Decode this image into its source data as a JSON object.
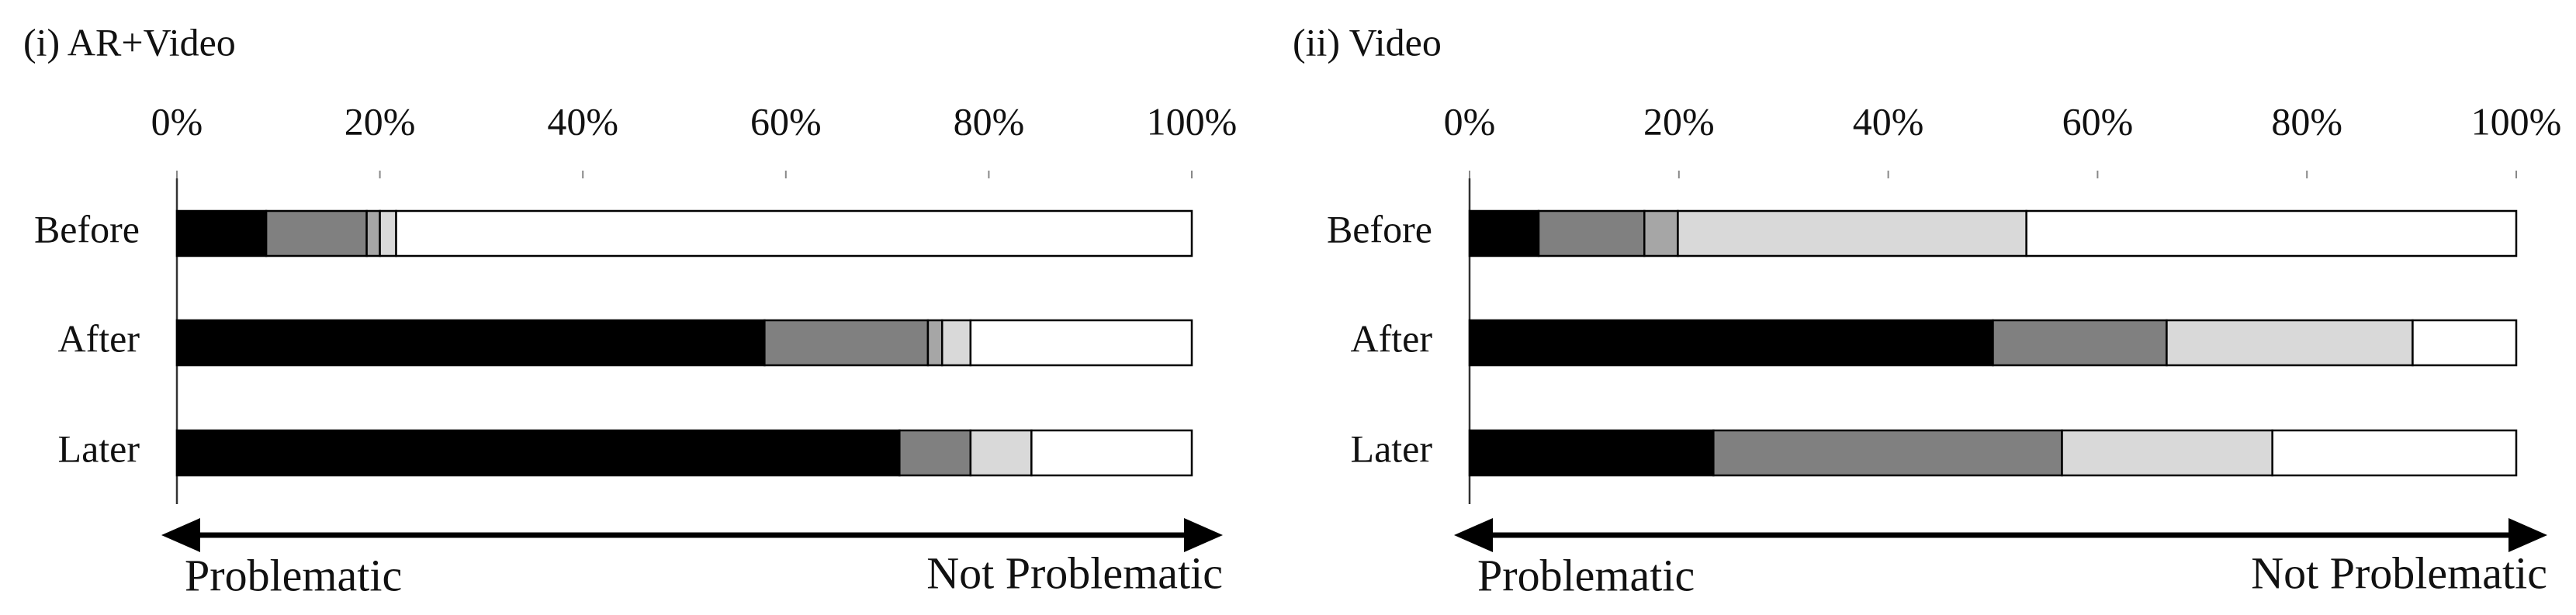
{
  "chart_data": [
    {
      "type": "stacked-bar-horizontal",
      "title": "(i) AR+Video",
      "categories": [
        "Before",
        "After",
        "Later"
      ],
      "series": [
        {
          "color": "#000000",
          "values": [
            8.8,
            57.9,
            71.2
          ]
        },
        {
          "color": "#808080",
          "values": [
            9.9,
            16.1,
            7.0
          ]
        },
        {
          "color": "#a6a6a6",
          "values": [
            1.3,
            1.4,
            0
          ]
        },
        {
          "color": "#d9d9d9",
          "values": [
            1.6,
            2.8,
            6.0
          ]
        },
        {
          "color": "#ffffff",
          "values": [
            78.4,
            21.8,
            15.8
          ]
        }
      ],
      "xlim": [
        0,
        100
      ],
      "xticks": [
        {
          "value": 0,
          "label": "0%"
        },
        {
          "value": 20,
          "label": "20%"
        },
        {
          "value": 40,
          "label": "40%"
        },
        {
          "value": 60,
          "label": "60%"
        },
        {
          "value": 80,
          "label": "80%"
        },
        {
          "value": 100,
          "label": "100%"
        }
      ],
      "annotations": [
        "Problematic",
        "Not Problematic"
      ]
    },
    {
      "type": "stacked-bar-horizontal",
      "title": "(ii) Video",
      "categories": [
        "Before",
        "After",
        "Later"
      ],
      "series": [
        {
          "color": "#000000",
          "values": [
            6.6,
            50.0,
            23.3
          ]
        },
        {
          "color": "#808080",
          "values": [
            10.1,
            16.6,
            33.3
          ]
        },
        {
          "color": "#a6a6a6",
          "values": [
            3.2,
            0,
            0
          ]
        },
        {
          "color": "#d9d9d9",
          "values": [
            33.3,
            23.5,
            20.1
          ]
        },
        {
          "color": "#ffffff",
          "values": [
            46.8,
            9.9,
            23.3
          ]
        }
      ],
      "xlim": [
        0,
        100
      ],
      "xticks": [
        {
          "value": 0,
          "label": "0%"
        },
        {
          "value": 20,
          "label": "20%"
        },
        {
          "value": 40,
          "label": "40%"
        },
        {
          "value": 60,
          "label": "60%"
        },
        {
          "value": 80,
          "label": "80%"
        },
        {
          "value": 100,
          "label": "100%"
        }
      ],
      "annotations": [
        "Problematic",
        "Not Problematic"
      ]
    }
  ]
}
